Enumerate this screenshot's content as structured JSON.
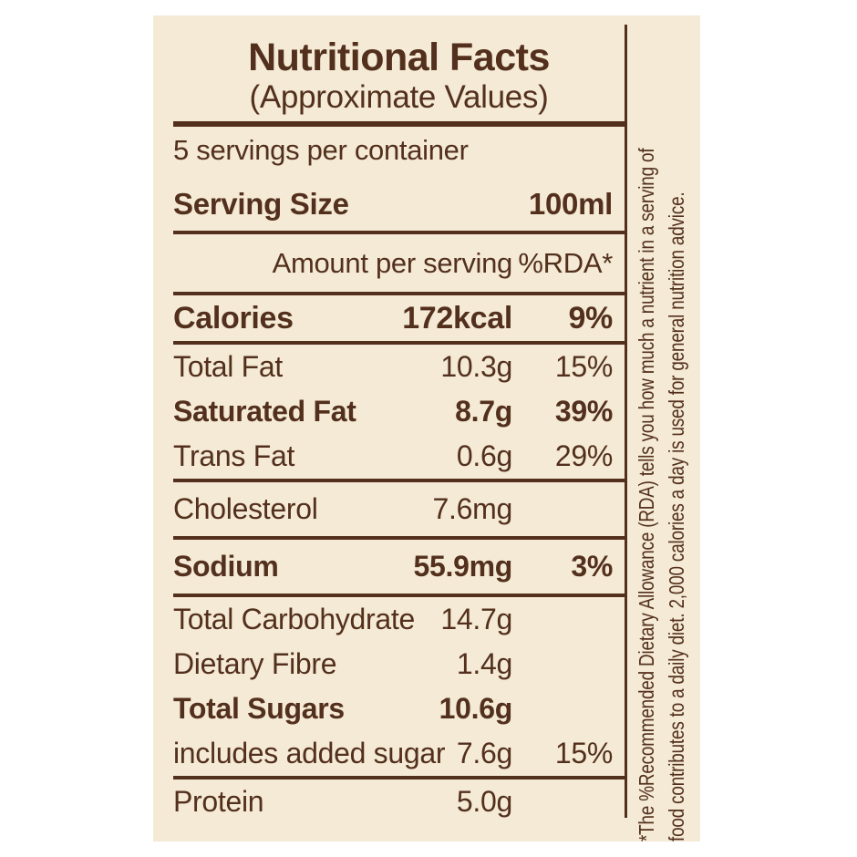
{
  "label": {
    "title": "Nutritional Facts",
    "subtitle": "(Approximate Values)",
    "servings_per_container": "5 servings per container",
    "serving_size": {
      "name": "Serving Size",
      "value": "100ml"
    },
    "columns": {
      "amount": "Amount per serving",
      "rda": "%RDA*"
    },
    "rows": [
      {
        "name": "Calories",
        "amount": "172kcal",
        "rda": "9%",
        "bold": true
      },
      {
        "name": "Total Fat",
        "amount": "10.3g",
        "rda": "15%",
        "bold": false
      },
      {
        "name": "Saturated Fat",
        "amount": "8.7g",
        "rda": "39%",
        "bold": true
      },
      {
        "name": "Trans Fat",
        "amount": "0.6g",
        "rda": "29%",
        "bold": false
      },
      {
        "name": "Cholesterol",
        "amount": "7.6mg",
        "rda": "",
        "bold": false
      },
      {
        "name": "Sodium",
        "amount": "55.9mg",
        "rda": "3%",
        "bold": true
      },
      {
        "name": "Total Carbohydrate",
        "amount": "14.7g",
        "rda": "",
        "bold": false
      },
      {
        "name": "Dietary Fibre",
        "amount": "1.4g",
        "rda": "",
        "bold": false
      },
      {
        "name": "Total Sugars",
        "amount": "10.6g",
        "rda": "",
        "bold": true
      },
      {
        "name": "includes added sugar",
        "amount": "7.6g",
        "rda": "15%",
        "bold": false
      },
      {
        "name": "Protein",
        "amount": "5.0g",
        "rda": "",
        "bold": false
      }
    ],
    "footnote_line1": "*The %Recommended Dietary Allowance (RDA) tells you how much a nutrient in a serving of",
    "footnote_line2": "food contributes to a daily diet. 2,000 calories a day is used for general nutrition advice.",
    "colors": {
      "label_background": "#f4ead5",
      "text_brown": "#53301d",
      "page_background": "#ffffff"
    }
  }
}
